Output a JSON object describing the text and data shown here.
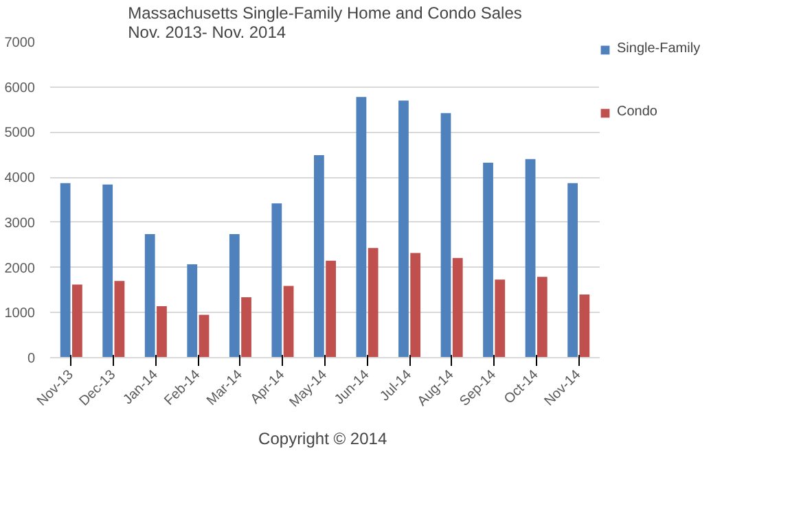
{
  "chart_data": {
    "type": "bar",
    "title": "Massachusetts Single-Family Home and Condo Sales\nNov. 2013-  Nov. 2014",
    "categories": [
      "Nov-13",
      "Dec-13",
      "Jan-14",
      "Feb-14",
      "Mar-14",
      "Apr-14",
      "May-14",
      "Jun-14",
      "Jul-14",
      "Aug-14",
      "Sep-14",
      "Oct-14",
      "Nov-14"
    ],
    "series": [
      {
        "name": "Single-Family",
        "color": "#4f81bd",
        "values": [
          3870,
          3840,
          2740,
          2070,
          2740,
          3420,
          4490,
          5780,
          5700,
          5420,
          4320,
          4400,
          3870
        ]
      },
      {
        "name": "Condo",
        "color": "#c0504d",
        "values": [
          1620,
          1700,
          1140,
          950,
          1340,
          1590,
          2150,
          2430,
          2320,
          2210,
          1730,
          1790,
          1400
        ]
      }
    ],
    "ylim": [
      0,
      7000
    ],
    "yticks": [
      0,
      1000,
      2000,
      3000,
      4000,
      5000,
      6000,
      7000
    ],
    "grid": "y",
    "legend": "right",
    "annotations": [
      "Copyright  © 2014"
    ]
  }
}
